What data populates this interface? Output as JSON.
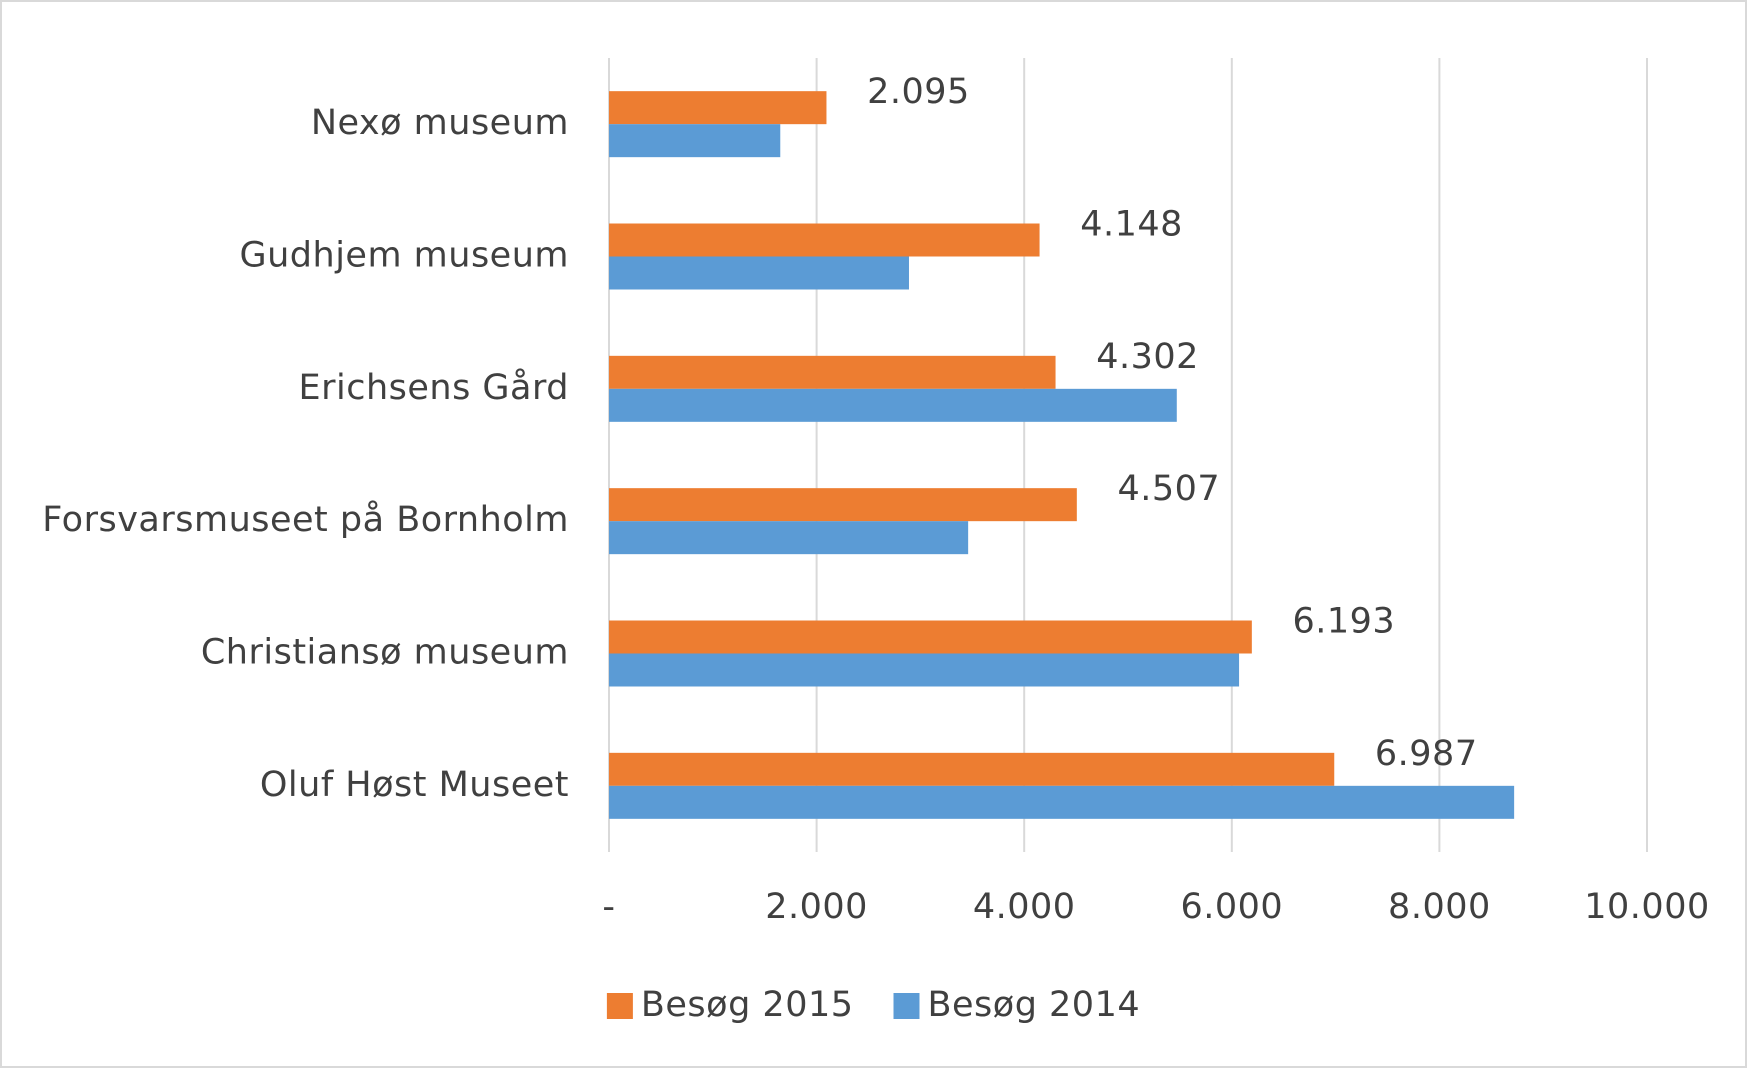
{
  "chart_data": {
    "type": "hbar",
    "categories": [
      "Nexø museum",
      "Gudhjem museum",
      "Erichsens Gård",
      "Forsvarsmuseet på Bornholm",
      "Christiansø museum",
      "Oluf Høst Museet"
    ],
    "series": [
      {
        "name": "Besøg 2015",
        "color": "#ed7d31",
        "values": [
          2095,
          4148,
          4302,
          4507,
          6193,
          6987
        ],
        "value_labels": [
          "2.095",
          "4.148",
          "4.302",
          "4.507",
          "6.193",
          "6.987"
        ]
      },
      {
        "name": "Besøg 2014",
        "color": "#5b9bd5",
        "values": [
          1650,
          2890,
          5470,
          3460,
          6070,
          8720
        ]
      }
    ],
    "xlim": [
      0,
      10000
    ],
    "xticks": [
      {
        "value": 0,
        "label": "-"
      },
      {
        "value": 2000,
        "label": "2.000"
      },
      {
        "value": 4000,
        "label": "4.000"
      },
      {
        "value": 6000,
        "label": "6.000"
      },
      {
        "value": 8000,
        "label": "8.000"
      },
      {
        "value": 10000,
        "label": "10.000"
      }
    ],
    "grid": true,
    "legend": "bottom"
  }
}
